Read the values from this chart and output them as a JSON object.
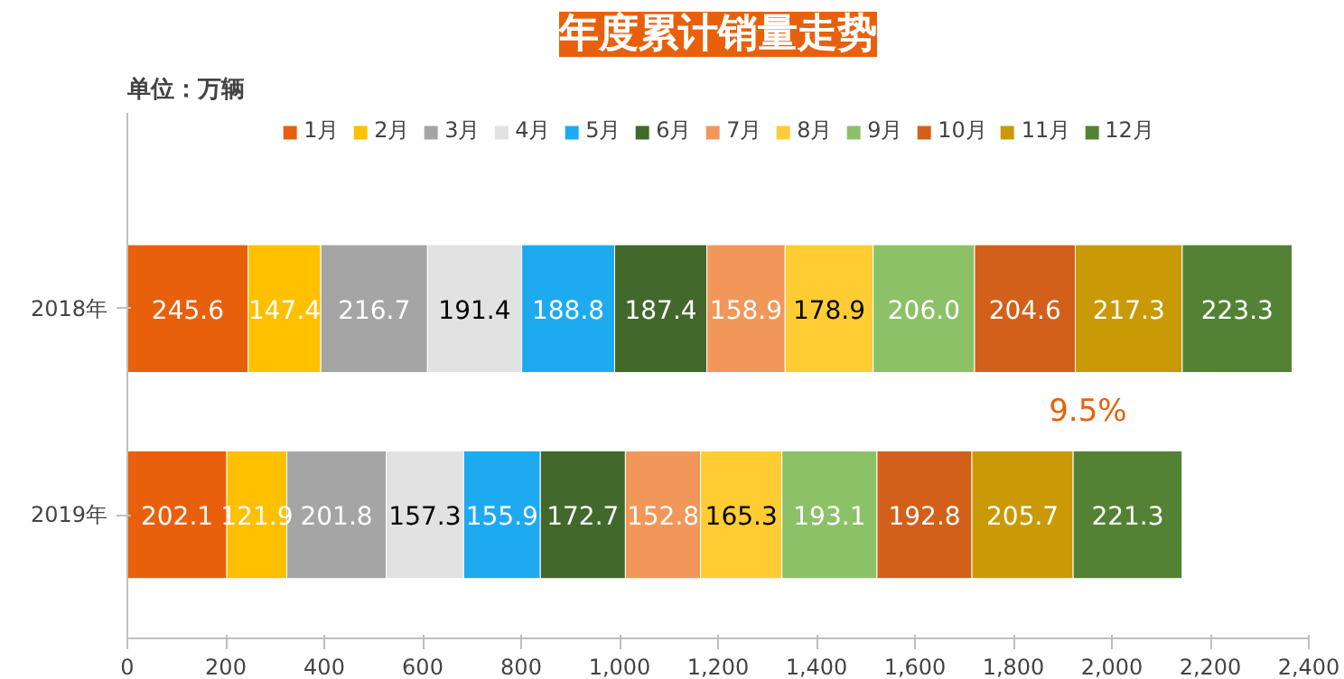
{
  "chart_data": {
    "type": "bar",
    "orientation": "horizontal",
    "stacked": true,
    "title": "年度累计销量走势",
    "subtitle": "单位：万辆",
    "categories": [
      "2018年",
      "2019年"
    ],
    "series": [
      {
        "name": "1月",
        "color": "#e8600c",
        "values": [
          245.6,
          202.1
        ],
        "value_labels": [
          "245.6",
          "202.1"
        ]
      },
      {
        "name": "2月",
        "color": "#ffc000",
        "values": [
          147.4,
          121.9
        ],
        "value_labels": [
          "147.4",
          "121.9"
        ]
      },
      {
        "name": "3月",
        "color": "#a5a5a5",
        "values": [
          216.7,
          201.8
        ],
        "value_labels": [
          "216.7",
          "201.8"
        ]
      },
      {
        "name": "4月",
        "color": "#e2e2e2",
        "values": [
          191.4,
          157.3
        ],
        "value_labels": [
          "191.4",
          "157.3"
        ]
      },
      {
        "name": "5月",
        "color": "#1eaaf1",
        "values": [
          188.8,
          155.9
        ],
        "value_labels": [
          "188.8",
          "155.9"
        ]
      },
      {
        "name": "6月",
        "color": "#43682b",
        "values": [
          187.4,
          172.7
        ],
        "value_labels": [
          "187.4",
          "172.7"
        ]
      },
      {
        "name": "7月",
        "color": "#f1975a",
        "values": [
          158.9,
          152.8
        ],
        "value_labels": [
          "158.9",
          "152.8"
        ]
      },
      {
        "name": "8月",
        "color": "#ffcd33",
        "values": [
          178.9,
          165.3
        ],
        "value_labels": [
          "178.9",
          "165.3"
        ]
      },
      {
        "name": "9月",
        "color": "#8cc168",
        "values": [
          206.0,
          193.1
        ],
        "value_labels": [
          "206.0",
          "193.1"
        ]
      },
      {
        "name": "10月",
        "color": "#d2601a",
        "values": [
          204.6,
          192.8
        ],
        "value_labels": [
          "204.6",
          "192.8"
        ]
      },
      {
        "name": "11月",
        "color": "#c99a06",
        "values": [
          217.3,
          205.7
        ],
        "value_labels": [
          "217.3",
          "205.7"
        ]
      },
      {
        "name": "12月",
        "color": "#548235",
        "values": [
          223.3,
          221.3
        ],
        "value_labels": [
          "223.3",
          "221.3"
        ]
      }
    ],
    "xlim": [
      0,
      2400
    ],
    "xticks": [
      0,
      200,
      400,
      600,
      800,
      {
        "value": 1000,
        "label": "1,000"
      },
      {
        "value": 1200,
        "label": "1,200"
      },
      {
        "value": 1400,
        "label": "1,400"
      },
      {
        "value": 1600,
        "label": "1,600"
      },
      {
        "value": 1800,
        "label": "1,800"
      },
      {
        "value": 2000,
        "label": "2,000"
      },
      {
        "value": 2200,
        "label": "2,200"
      },
      {
        "value": 2400,
        "label": "2,400"
      }
    ],
    "grid": false,
    "legend": "top",
    "annotations": [
      "9.5%"
    ]
  }
}
